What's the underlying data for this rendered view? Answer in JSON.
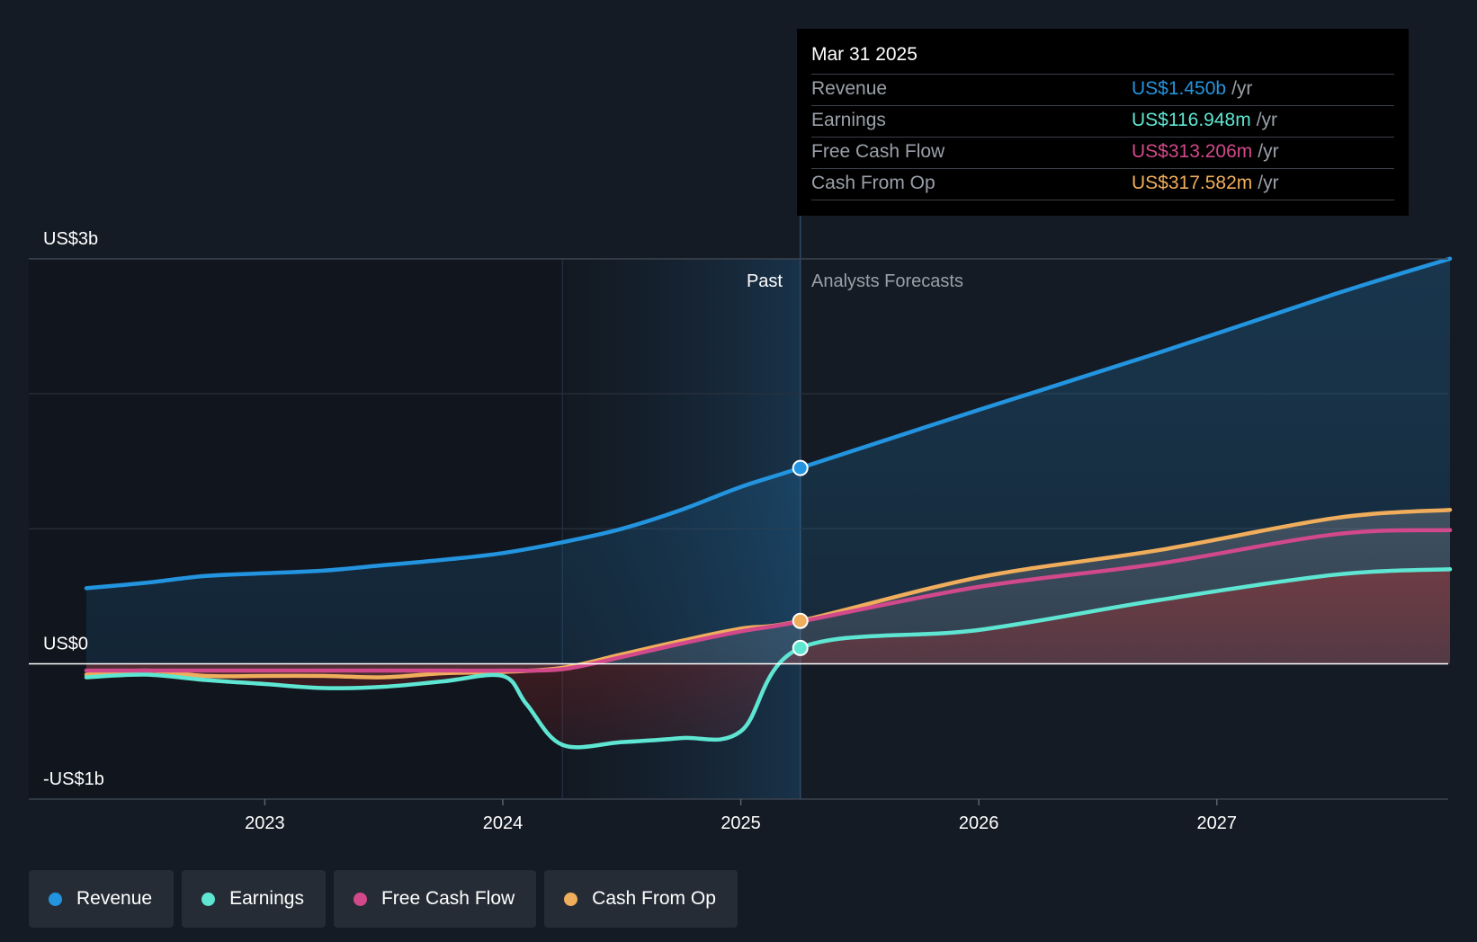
{
  "tooltip": {
    "date": "Mar 31 2025",
    "rows": [
      {
        "label": "Revenue",
        "value": "US$1.450b",
        "unit": "/yr",
        "color": "#2394df"
      },
      {
        "label": "Earnings",
        "value": "US$116.948m",
        "unit": "/yr",
        "color": "#5ee6d3"
      },
      {
        "label": "Free Cash Flow",
        "value": "US$313.206m",
        "unit": "/yr",
        "color": "#d1498a"
      },
      {
        "label": "Cash From Op",
        "value": "US$317.582m",
        "unit": "/yr",
        "color": "#f0ad5c"
      }
    ]
  },
  "regions": {
    "past": "Past",
    "forecast": "Analysts Forecasts"
  },
  "legend": [
    {
      "label": "Revenue",
      "color": "#2394df"
    },
    {
      "label": "Earnings",
      "color": "#5ee6d3"
    },
    {
      "label": "Free Cash Flow",
      "color": "#d1498a"
    },
    {
      "label": "Cash From Op",
      "color": "#f0ad5c"
    }
  ],
  "chart_data": {
    "type": "line",
    "title": "",
    "xlabel": "",
    "ylabel": "",
    "x_ticks": [
      "2023",
      "2024",
      "2025",
      "2026",
      "2027"
    ],
    "y_ticks": [
      "US$3b",
      "US$0",
      "-US$1b"
    ],
    "ylim": [
      -1.0,
      3.0
    ],
    "y_unit": "US$ billions",
    "xlim": [
      2022.25,
      2027.98
    ],
    "past_end": 2025.25,
    "highlight_start": 2024.25,
    "grid": true,
    "legend_position": "bottom",
    "series": [
      {
        "name": "Revenue",
        "color": "#2394df",
        "x": [
          2022.25,
          2022.5,
          2022.75,
          2023.0,
          2023.25,
          2023.5,
          2023.75,
          2024.0,
          2024.25,
          2024.5,
          2024.75,
          2025.0,
          2025.25,
          2026.0,
          2026.75,
          2027.5,
          2027.98
        ],
        "y": [
          0.56,
          0.6,
          0.65,
          0.67,
          0.69,
          0.73,
          0.77,
          0.82,
          0.9,
          1.0,
          1.14,
          1.31,
          1.45,
          1.88,
          2.3,
          2.74,
          3.0
        ]
      },
      {
        "name": "Earnings",
        "color": "#5ee6d3",
        "x": [
          2022.25,
          2022.5,
          2022.75,
          2023.0,
          2023.25,
          2023.5,
          2023.75,
          2024.0,
          2024.1,
          2024.25,
          2024.5,
          2024.75,
          2025.0,
          2025.25,
          2026.0,
          2026.75,
          2027.5,
          2027.98
        ],
        "y": [
          -0.1,
          -0.08,
          -0.12,
          -0.15,
          -0.18,
          -0.17,
          -0.13,
          -0.09,
          -0.3,
          -0.6,
          -0.58,
          -0.55,
          -0.5,
          0.117,
          0.25,
          0.47,
          0.66,
          0.7
        ]
      },
      {
        "name": "Free Cash Flow",
        "color": "#d1498a",
        "x": [
          2022.25,
          2022.5,
          2022.75,
          2023.0,
          2023.25,
          2023.5,
          2023.75,
          2024.0,
          2024.25,
          2024.5,
          2024.75,
          2025.0,
          2025.25,
          2026.0,
          2026.75,
          2027.5,
          2027.98
        ],
        "y": [
          -0.05,
          -0.05,
          -0.05,
          -0.05,
          -0.05,
          -0.05,
          -0.05,
          -0.05,
          -0.04,
          0.05,
          0.15,
          0.24,
          0.313,
          0.57,
          0.74,
          0.96,
          0.99
        ]
      },
      {
        "name": "Cash From Op",
        "color": "#f0ad5c",
        "x": [
          2022.25,
          2022.5,
          2022.75,
          2023.0,
          2023.25,
          2023.5,
          2023.75,
          2024.0,
          2024.25,
          2024.5,
          2024.75,
          2025.0,
          2025.25,
          2026.0,
          2026.75,
          2027.5,
          2027.98
        ],
        "y": [
          -0.08,
          -0.05,
          -0.09,
          -0.09,
          -0.09,
          -0.1,
          -0.07,
          -0.06,
          -0.03,
          0.07,
          0.17,
          0.26,
          0.318,
          0.64,
          0.84,
          1.08,
          1.14
        ]
      }
    ]
  }
}
